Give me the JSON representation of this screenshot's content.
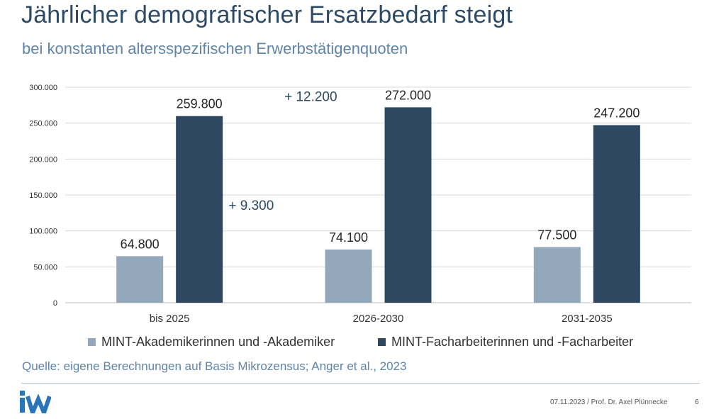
{
  "header": {
    "title": "Jährlicher demografischer Ersatzbedarf steigt",
    "subtitle": "bei konstanten altersspezifischen Erwerbstätigenquoten"
  },
  "chart_data": {
    "type": "bar",
    "categories": [
      "bis 2025",
      "2026-2030",
      "2031-2035"
    ],
    "series": [
      {
        "name": "MINT-Akademikerinnen und -Akademiker",
        "color": "#94a8bb",
        "values": [
          64800,
          74100,
          77500
        ],
        "labels": [
          "64.800",
          "74.100",
          "77.500"
        ]
      },
      {
        "name": "MINT-Facharbeiterinnen und -Facharbeiter",
        "color": "#2e4862",
        "values": [
          259800,
          272000,
          247200
        ],
        "labels": [
          "259.800",
          "272.000",
          "247.200"
        ]
      }
    ],
    "ylim": [
      0,
      300000
    ],
    "yticks": [
      0,
      50000,
      100000,
      150000,
      200000,
      250000,
      300000
    ],
    "ytick_labels": [
      "0",
      "50.000",
      "100.000",
      "150.000",
      "200.000",
      "250.000",
      "300.000"
    ],
    "annotations": [
      {
        "text": "+ 12.200",
        "series": 1,
        "between": [
          0,
          1
        ]
      },
      {
        "text": "+ 9.300",
        "series": 0,
        "between": [
          0,
          1
        ]
      }
    ],
    "grid": true,
    "legend": "bottom"
  },
  "source": "Quelle: eigene Berechnungen auf Basis Mikrozensus; Anger et al., 2023",
  "footer": {
    "date_author": "07.11.2023 / Prof. Dr. Axel Plünnecke",
    "page": "6"
  },
  "colors": {
    "title": "#2c4a65",
    "subtitle": "#5f84a8",
    "logo": "#2a74b8"
  }
}
